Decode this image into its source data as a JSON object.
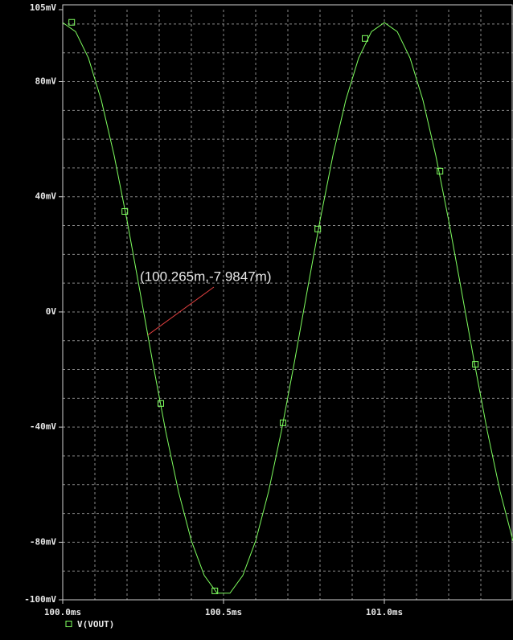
{
  "chart_data": {
    "type": "line",
    "x": [
      100.0,
      100.04,
      100.08,
      100.12,
      100.16,
      100.2,
      100.24,
      100.28,
      100.32,
      100.36,
      100.4,
      100.44,
      100.48,
      100.52,
      100.56,
      100.6,
      100.64,
      100.68,
      100.72,
      100.76,
      100.8,
      100.84,
      100.88,
      100.92,
      100.96,
      101.0,
      101.04,
      101.08,
      101.12,
      101.16,
      101.2,
      101.24,
      101.28,
      101.32,
      101.36,
      101.4
    ],
    "series": [
      {
        "name": "V(VOUT)",
        "color": "#7fff5f",
        "values": [
          100.5,
          97.38,
          88.19,
          73.54,
          54.31,
          31.75,
          7.25,
          -17.65,
          -41.37,
          -62.42,
          -79.5,
          -91.52,
          -97.71,
          -97.71,
          -91.52,
          -79.5,
          -62.42,
          -41.37,
          -17.65,
          7.25,
          31.75,
          54.31,
          73.54,
          88.19,
          97.38,
          100.5,
          97.38,
          88.19,
          73.54,
          54.31,
          31.75,
          7.25,
          -17.65,
          -41.37,
          -62.42,
          -79.5
        ],
        "markers": {
          "x": [
            100.028,
            100.193,
            100.305,
            100.473,
            100.685,
            100.793,
            100.94,
            101.173,
            101.283
          ],
          "values": [
            100.6,
            34.9,
            -31.8,
            -96.9,
            -38.5,
            28.8,
            95,
            48.9,
            -18.2
          ]
        }
      }
    ],
    "xlim": [
      100.0,
      101.4
    ],
    "ylim": [
      -100,
      105
    ],
    "xticks": [
      {
        "value": 100.0,
        "label": "100.0ms"
      },
      {
        "value": 100.5,
        "label": "100.5ms"
      },
      {
        "value": 101.0,
        "label": "101.0ms"
      }
    ],
    "yticks": [
      {
        "value": 105,
        "label": "105mV"
      },
      {
        "value": 80,
        "label": "80mV"
      },
      {
        "value": 40,
        "label": "40mV"
      },
      {
        "value": 0,
        "label": "0V"
      },
      {
        "value": -40,
        "label": "-40mV"
      },
      {
        "value": -80,
        "label": "-80mV"
      },
      {
        "value": -100,
        "label": "-100mV"
      }
    ],
    "xgrid": [
      100.1,
      100.2,
      100.3,
      100.4,
      100.5,
      100.6,
      100.7,
      100.8,
      100.9,
      101.0,
      101.1,
      101.2,
      101.3
    ],
    "ygrid": [
      -90,
      -80,
      -70,
      -60,
      -50,
      -40,
      -30,
      -20,
      -10,
      0,
      10,
      20,
      30,
      40,
      50,
      60,
      70,
      80,
      90,
      100
    ],
    "annotation": {
      "text": "(100.265m,-7.9847m)",
      "x": 100.265,
      "y": -7.9847,
      "color": "#e04040"
    }
  }
}
